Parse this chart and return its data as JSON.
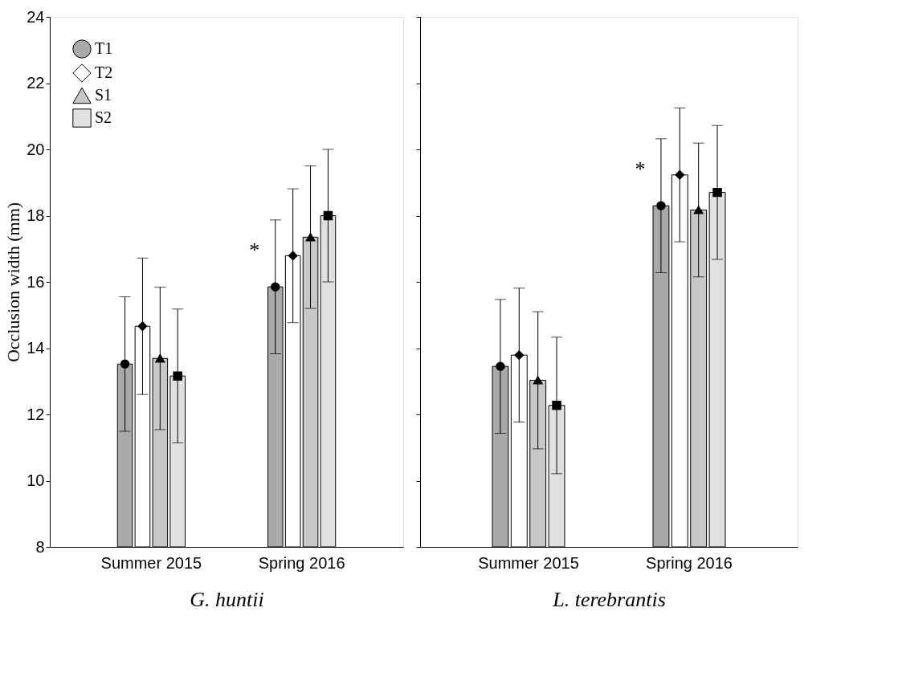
{
  "chart_data": [
    {
      "type": "bar",
      "categories": [
        "Summer 2015",
        "Spring 2016"
      ],
      "xlabel": "G. huntii",
      "ylabel": "Occlusion width (mm)",
      "ylim": [
        8,
        24
      ],
      "yticks": [
        8,
        10,
        12,
        14,
        16,
        18,
        20,
        22,
        24
      ],
      "legend": "top left",
      "grid": false,
      "series": [
        {
          "name": "T1",
          "color": "#a9a9a9",
          "values": [
            13.52,
            15.85
          ],
          "errors": [
            2.03,
            2.02
          ]
        },
        {
          "name": "T2",
          "color": "#ffffff",
          "values": [
            14.66,
            16.79
          ],
          "errors": [
            2.06,
            2.02
          ]
        },
        {
          "name": "S1",
          "color": "#c8c8c8",
          "values": [
            13.69,
            17.35
          ],
          "errors": [
            2.15,
            2.15
          ]
        },
        {
          "name": "S2",
          "color": "#e0e0e0",
          "values": [
            13.16,
            18.0
          ],
          "errors": [
            2.02,
            2.0
          ]
        },
        {
          "type": "scatter",
          "color": "#000000",
          "marker": "circle",
          "x": [
            "Summer 2015",
            "Spring 2016"
          ],
          "values": [
            13.52,
            15.85
          ]
        },
        {
          "type": "scatter",
          "color": "#000000",
          "marker": "diamond",
          "x": [
            "Summer 2015",
            "Spring 2016"
          ],
          "values": [
            14.66,
            16.79
          ]
        },
        {
          "type": "scatter",
          "color": "#000000",
          "marker": "triangle",
          "x": [
            "Summer 2015",
            "Spring 2016"
          ],
          "values": [
            13.69,
            17.35
          ]
        },
        {
          "type": "scatter",
          "color": "#000000",
          "marker": "square",
          "x": [
            "Summer 2015",
            "Spring 2016"
          ],
          "values": [
            13.16,
            18.0
          ]
        }
      ],
      "annotations": [
        {
          "text": "*",
          "x": "Spring 2016",
          "y": 15.85
        }
      ]
    },
    {
      "type": "bar",
      "categories": [
        "Summer 2015",
        "Spring 2016"
      ],
      "xlabel": "L. terebrantis",
      "ylim": [
        8,
        24
      ],
      "yticks": [
        8,
        10,
        12,
        14,
        16,
        18,
        20,
        22,
        24
      ],
      "tick_labels": "x",
      "grid": false,
      "series": [
        {
          "color": "#a9a9a9",
          "values": [
            13.45,
            18.3
          ],
          "errors": [
            2.02,
            2.02
          ]
        },
        {
          "color": "#ffffff",
          "values": [
            13.79,
            19.23
          ],
          "errors": [
            2.02,
            2.02
          ]
        },
        {
          "color": "#c8c8c8",
          "values": [
            13.03,
            18.17
          ],
          "errors": [
            2.07,
            2.02
          ]
        },
        {
          "color": "#e0e0e0",
          "values": [
            12.27,
            18.7
          ],
          "errors": [
            2.06,
            2.02
          ]
        },
        {
          "type": "scatter",
          "color": "#000000",
          "marker": "circle",
          "x": [
            "Summer 2015",
            "Spring 2016"
          ],
          "values": [
            13.45,
            18.3
          ]
        },
        {
          "type": "scatter",
          "color": "#000000",
          "marker": "diamond",
          "x": [
            "Summer 2015",
            "Spring 2016"
          ],
          "values": [
            13.79,
            19.23
          ]
        },
        {
          "type": "scatter",
          "color": "#000000",
          "marker": "triangle",
          "x": [
            "Summer 2015",
            "Spring 2016"
          ],
          "values": [
            13.03,
            18.17
          ]
        },
        {
          "type": "scatter",
          "color": "#000000",
          "marker": "square",
          "x": [
            "Summer 2015",
            "Spring 2016"
          ],
          "values": [
            12.27,
            18.7
          ]
        }
      ],
      "annotations": [
        {
          "text": "*",
          "x": "Spring 2016",
          "y": 18.3
        }
      ]
    }
  ]
}
